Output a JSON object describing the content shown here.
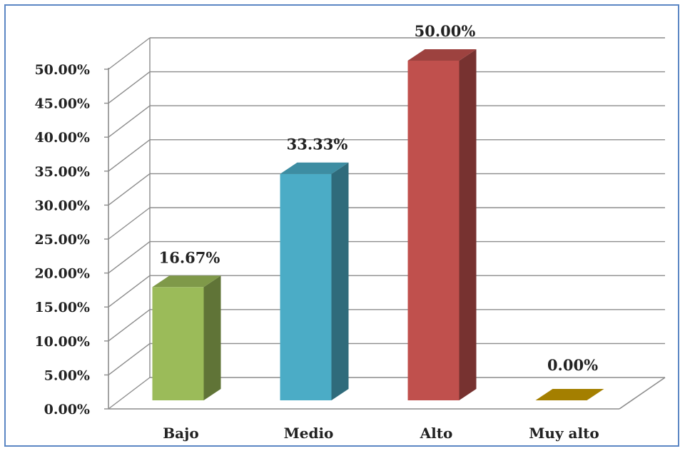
{
  "chart_data": {
    "type": "bar",
    "categories": [
      "Bajo",
      "Medio",
      "Alto",
      "Muy alto"
    ],
    "values": [
      16.67,
      33.33,
      50.0,
      0.0
    ],
    "data_labels": [
      "16.67%",
      "33.33%",
      "50.00%",
      "0.00%"
    ],
    "ylim": [
      0,
      50
    ],
    "y_ticks": [
      "0.00%",
      "5.00%",
      "10.00%",
      "15.00%",
      "20.00%",
      "25.00%",
      "30.00%",
      "35.00%",
      "40.00%",
      "45.00%",
      "50.00%"
    ],
    "grid": true,
    "legend": "none",
    "colors": [
      "#9bbb59",
      "#4bacc6",
      "#c0504d",
      "#c89b00"
    ]
  }
}
